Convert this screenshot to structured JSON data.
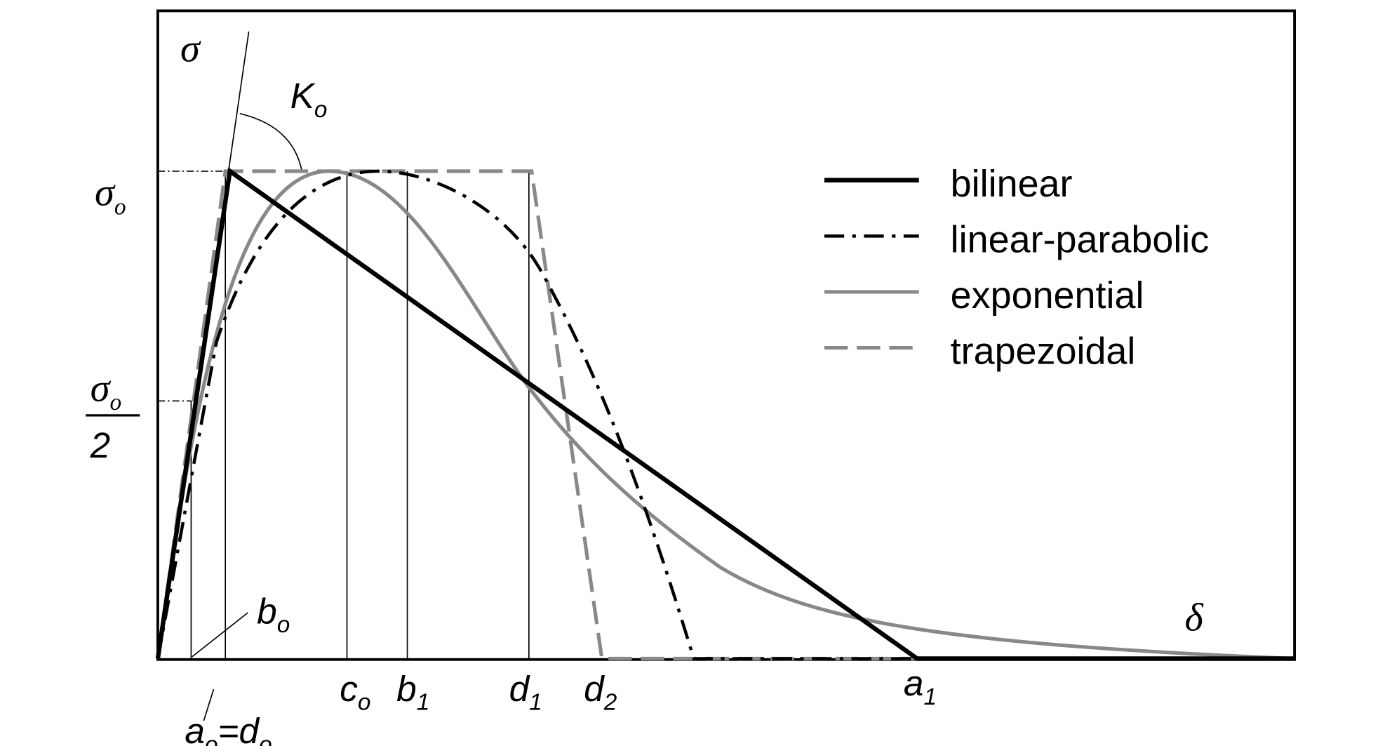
{
  "axes": {
    "y_symbol": "σ",
    "x_symbol": "δ",
    "stiffness": {
      "main": "K",
      "sub": "o"
    },
    "peak": {
      "main": "σ",
      "sub": "o"
    },
    "half_peak": {
      "main": "σ",
      "sub": "o",
      "denominator": "2"
    }
  },
  "x_markers": [
    {
      "main": "b",
      "sub": "o"
    },
    {
      "main": "a",
      "sub": "o",
      "eq": "=d",
      "sub2": "o"
    },
    {
      "main": "c",
      "sub": "o"
    },
    {
      "main": "b",
      "sub": "1"
    },
    {
      "main": "d",
      "sub": "1"
    },
    {
      "main": "d",
      "sub": "2"
    },
    {
      "main": "a",
      "sub": "1"
    }
  ],
  "legend": [
    "bilinear",
    "linear-parabolic",
    "exponential",
    "trapezoidal"
  ]
}
